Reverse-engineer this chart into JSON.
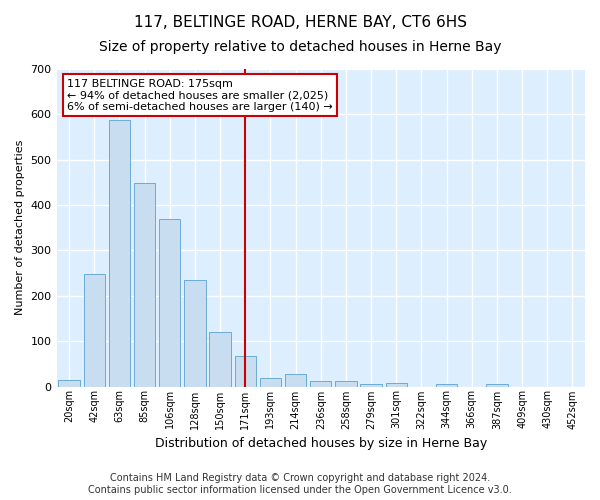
{
  "title": "117, BELTINGE ROAD, HERNE BAY, CT6 6HS",
  "subtitle": "Size of property relative to detached houses in Herne Bay",
  "xlabel": "Distribution of detached houses by size in Herne Bay",
  "ylabel": "Number of detached properties",
  "categories": [
    "20sqm",
    "42sqm",
    "63sqm",
    "85sqm",
    "106sqm",
    "128sqm",
    "150sqm",
    "171sqm",
    "193sqm",
    "214sqm",
    "236sqm",
    "258sqm",
    "279sqm",
    "301sqm",
    "322sqm",
    "344sqm",
    "366sqm",
    "387sqm",
    "409sqm",
    "430sqm",
    "452sqm"
  ],
  "values": [
    15,
    248,
    588,
    448,
    370,
    235,
    120,
    68,
    18,
    28,
    12,
    12,
    5,
    8,
    0,
    5,
    0,
    5,
    0,
    0,
    0
  ],
  "bar_color": "#c8ddf0",
  "bar_edge_color": "#6aabd6",
  "vline_x_index": 7,
  "vline_color": "#cc0000",
  "annotation_line1": "117 BELTINGE ROAD: 175sqm",
  "annotation_line2": "← 94% of detached houses are smaller (2,025)",
  "annotation_line3": "6% of semi-detached houses are larger (140) →",
  "annotation_box_color": "#ffffff",
  "annotation_box_edge_color": "#cc0000",
  "ylim": [
    0,
    700
  ],
  "yticks": [
    0,
    100,
    200,
    300,
    400,
    500,
    600,
    700
  ],
  "fig_bg_color": "#ffffff",
  "plot_bg_color": "#ddeeff",
  "grid_color": "#ffffff",
  "title_fontsize": 11,
  "subtitle_fontsize": 10,
  "xlabel_fontsize": 9,
  "ylabel_fontsize": 8,
  "footer_text": "Contains HM Land Registry data © Crown copyright and database right 2024.\nContains public sector information licensed under the Open Government Licence v3.0.",
  "footer_fontsize": 7
}
